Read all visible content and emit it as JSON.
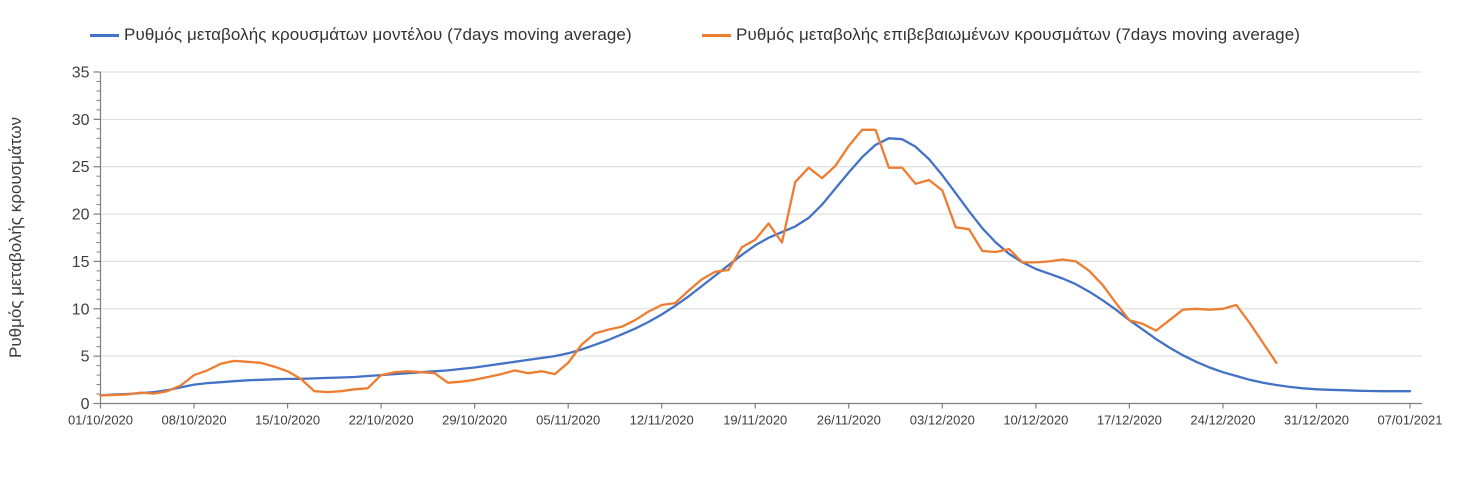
{
  "chart_data": {
    "type": "line",
    "title": "",
    "ylabel": "Ρυθμός μεταβολής κρουσμάτων",
    "xlabel": "",
    "ylim": [
      0,
      35
    ],
    "y_ticks": [
      0,
      5,
      10,
      15,
      20,
      25,
      30,
      35
    ],
    "y_minor_tick_step": 1,
    "grid": "horizontal",
    "legend_position": "top",
    "x_tick_labels": [
      "01/10/2020",
      "08/10/2020",
      "15/10/2020",
      "22/10/2020",
      "29/10/2020",
      "05/11/2020",
      "12/11/2020",
      "19/11/2020",
      "26/11/2020",
      "03/12/2020",
      "10/12/2020",
      "17/12/2020",
      "24/12/2020",
      "31/12/2020",
      "07/01/2021"
    ],
    "x_days_per_tick": 7,
    "x_total_days": 98,
    "axis_color": "#7f7f7f",
    "gridline_color": "#d9d9d9",
    "label_color": "#404040",
    "series": [
      {
        "name": "Ρυθμός μεταβολής κρουσμάτων μοντέλου (7days moving average)",
        "color": "#4472C4",
        "start_date": "01/10/2020",
        "end_date": "07/01/2021",
        "values": [
          0.85,
          0.95,
          1.0,
          1.1,
          1.2,
          1.4,
          1.7,
          2.0,
          2.15,
          2.25,
          2.35,
          2.45,
          2.5,
          2.55,
          2.6,
          2.6,
          2.65,
          2.7,
          2.75,
          2.8,
          2.9,
          3.0,
          3.1,
          3.2,
          3.3,
          3.4,
          3.5,
          3.65,
          3.8,
          4.0,
          4.2,
          4.4,
          4.6,
          4.8,
          5.0,
          5.3,
          5.7,
          6.2,
          6.7,
          7.3,
          7.9,
          8.6,
          9.4,
          10.3,
          11.3,
          12.4,
          13.5,
          14.6,
          15.7,
          16.7,
          17.5,
          18.1,
          18.7,
          19.6,
          21.0,
          22.7,
          24.4,
          26.0,
          27.3,
          28.0,
          27.9,
          27.1,
          25.8,
          24.1,
          22.2,
          20.3,
          18.5,
          17.0,
          15.8,
          14.9,
          14.2,
          13.7,
          13.2,
          12.6,
          11.8,
          10.9,
          9.9,
          8.8,
          7.8,
          6.8,
          5.9,
          5.1,
          4.4,
          3.8,
          3.3,
          2.9,
          2.5,
          2.2,
          1.95,
          1.75,
          1.6,
          1.5,
          1.45,
          1.4,
          1.35,
          1.32,
          1.3,
          1.3,
          1.3
        ]
      },
      {
        "name": "Ρυθμός μεταβολής επιβεβαιωμένων κρουσμάτων (7days moving average)",
        "color": "#ED7D31",
        "start_date": "01/10/2020",
        "end_date": "28/12/2020",
        "values": [
          0.85,
          0.9,
          0.95,
          1.15,
          1.05,
          1.3,
          1.9,
          3.0,
          3.5,
          4.2,
          4.5,
          4.4,
          4.3,
          3.9,
          3.4,
          2.6,
          1.3,
          1.2,
          1.3,
          1.5,
          1.6,
          3.0,
          3.3,
          3.4,
          3.3,
          3.2,
          2.2,
          2.3,
          2.5,
          2.8,
          3.1,
          3.5,
          3.2,
          3.4,
          3.1,
          4.3,
          6.2,
          7.4,
          7.8,
          8.1,
          8.8,
          9.7,
          10.4,
          10.6,
          11.9,
          13.1,
          13.9,
          14.1,
          16.5,
          17.3,
          19.0,
          17.0,
          23.4,
          24.9,
          23.8,
          25.1,
          27.2,
          28.9,
          28.9,
          24.9,
          24.9,
          23.2,
          23.6,
          22.5,
          18.6,
          18.4,
          16.1,
          16.0,
          16.3,
          14.9,
          14.9,
          15.0,
          15.2,
          15.0,
          14.0,
          12.5,
          10.6,
          8.8,
          8.4,
          7.7,
          8.8,
          9.9,
          10.0,
          9.9,
          10.0,
          10.4,
          8.5,
          6.4,
          4.3
        ]
      }
    ]
  }
}
